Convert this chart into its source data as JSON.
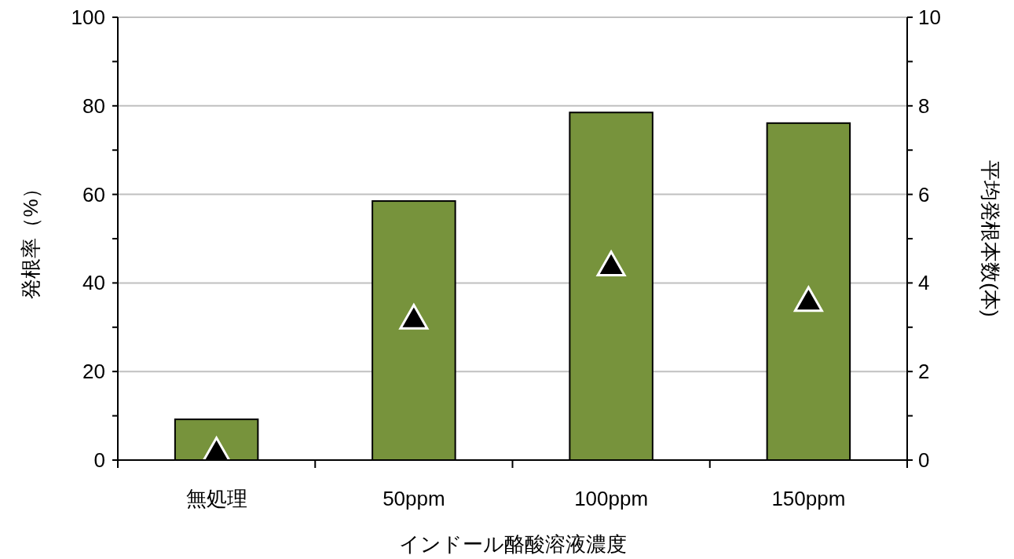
{
  "chart_data": {
    "type": "bar",
    "categories": [
      "無処理",
      "50ppm",
      "100ppm",
      "150ppm"
    ],
    "xlabel": "インドール酪酸溶液濃度",
    "ylabel": "発根率（%）",
    "y2label": "平均発根本数(本)",
    "ylim": [
      0,
      100
    ],
    "yticks": [
      0,
      {
        "value": 10,
        "label": null
      },
      20,
      {
        "value": 30,
        "label": null
      },
      40,
      {
        "value": 50,
        "label": null
      },
      60,
      {
        "value": 70,
        "label": null
      },
      80,
      {
        "value": 90,
        "label": null
      },
      100
    ],
    "y2lim": [
      0,
      10
    ],
    "y2ticks": [
      0,
      {
        "value": 1,
        "label": null
      },
      2,
      {
        "value": 3,
        "label": null
      },
      4,
      {
        "value": 5,
        "label": null
      },
      6,
      {
        "value": 7,
        "label": null
      },
      8,
      {
        "value": 9,
        "label": null
      },
      10
    ],
    "grid": "y",
    "series": [
      {
        "color": "#77933c",
        "values": [
          9.2,
          58.5,
          78.5,
          76.1
        ]
      },
      {
        "type": "scatter",
        "axis": "y2",
        "color": "#000000",
        "marker": "triangle",
        "values": [
          0.2,
          3.2,
          4.4,
          3.6
        ]
      }
    ]
  }
}
